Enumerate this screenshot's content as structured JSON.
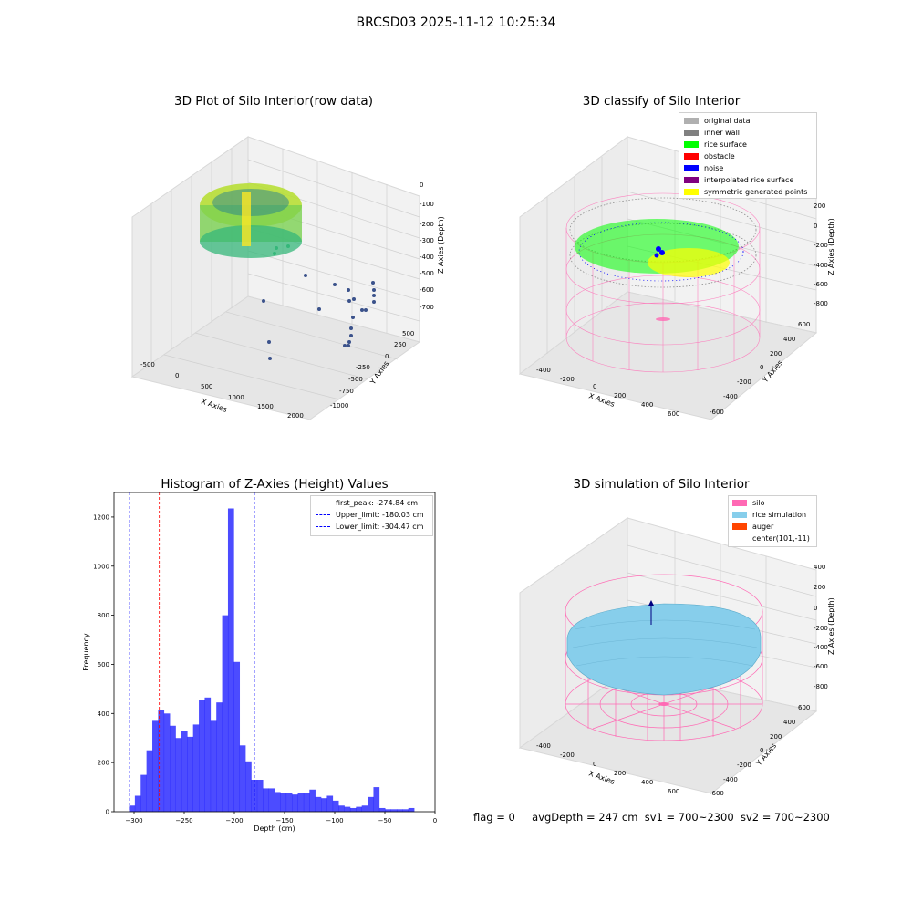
{
  "suptitle": "BRCSD03 2025-11-12 10:25:34",
  "panels": {
    "raw": {
      "title": "3D Plot of Silo Interior(row data)",
      "xlabel": "X Axies",
      "ylabel": "Y Axies",
      "zlabel": "Z Axies (Depth)",
      "xticks": [
        "-500",
        "0",
        "500",
        "1000",
        "1500",
        "2000"
      ],
      "yticks": [
        "500",
        "250",
        "0",
        "-250",
        "-500",
        "-750",
        "-1000"
      ],
      "zticks": [
        "0",
        "-100",
        "-200",
        "-300",
        "-400",
        "-500",
        "-600",
        "-700"
      ]
    },
    "classify": {
      "title": "3D classify of Silo Interior",
      "xlabel": "X Axies",
      "ylabel": "Y Axies",
      "zlabel": "Z Axies (Depth)",
      "xticks": [
        "-400",
        "-200",
        "0",
        "200",
        "400",
        "600"
      ],
      "yticks": [
        "600",
        "400",
        "200",
        "0",
        "-200",
        "-400",
        "-600"
      ],
      "zticks": [
        "200",
        "0",
        "-200",
        "-400",
        "-600",
        "-800"
      ],
      "legend": [
        {
          "label": "original data",
          "color": "#b0b0b0"
        },
        {
          "label": "inner wall",
          "color": "#808080"
        },
        {
          "label": "rice surface",
          "color": "#00ff00"
        },
        {
          "label": "obstacle",
          "color": "#ff0000"
        },
        {
          "label": "noise",
          "color": "#0000ff"
        },
        {
          "label": "interpolated rice surface",
          "color": "#800080"
        },
        {
          "label": "symmetric generated points",
          "color": "#ffff00"
        }
      ]
    },
    "simulation": {
      "title": "3D simulation of Silo Interior",
      "xlabel": "X Axies",
      "ylabel": "Y Axies",
      "zlabel": "Z Axies (Depth)",
      "xticks": [
        "-400",
        "-200",
        "0",
        "200",
        "400",
        "600"
      ],
      "yticks": [
        "600",
        "400",
        "200",
        "0",
        "-200",
        "-400",
        "-600"
      ],
      "zticks": [
        "400",
        "200",
        "0",
        "-200",
        "-400",
        "-600",
        "-800"
      ],
      "legend": [
        {
          "label": "silo",
          "color": "#ff69b4"
        },
        {
          "label": "rice simulation",
          "color": "#87ceeb"
        },
        {
          "label": "auger",
          "color": "#ff4500"
        },
        {
          "label": "center(101,-11)",
          "color": ""
        }
      ]
    }
  },
  "footer": {
    "flag": "flag = 0",
    "avgDepth": "avgDepth = 247 cm",
    "sv1": "sv1 = 700~2300",
    "sv2": "sv2 = 700~2300"
  },
  "chart_data": {
    "type": "bar",
    "title": "Histogram of Z-Axies (Height) Values",
    "xlabel": "Depth (cm)",
    "ylabel": "Frequency",
    "xlim": [
      -320,
      0
    ],
    "ylim": [
      0,
      1300
    ],
    "xticks": [
      -300,
      -250,
      -200,
      -150,
      -100,
      -50,
      0
    ],
    "yticks": [
      0,
      200,
      400,
      600,
      800,
      1000,
      1200
    ],
    "bin_start": -305,
    "bin_width": 5.8,
    "values": [
      25,
      65,
      150,
      250,
      370,
      415,
      400,
      350,
      300,
      330,
      305,
      355,
      455,
      465,
      370,
      445,
      800,
      1235,
      610,
      270,
      205,
      130,
      130,
      95,
      95,
      80,
      75,
      75,
      70,
      75,
      75,
      90,
      60,
      55,
      65,
      45,
      25,
      20,
      15,
      20,
      25,
      60,
      100,
      15,
      10,
      10,
      10,
      10,
      15
    ],
    "color": "#0000ff",
    "vlines": [
      {
        "label": "first_peak: -274.84 cm",
        "x": -274.84,
        "color": "#ff0000"
      },
      {
        "label": "Upper_limit: -180.03 cm",
        "x": -180.03,
        "color": "#0000ff"
      },
      {
        "label": "Lower_limit: -304.47 cm",
        "x": -304.47,
        "color": "#0000ff"
      }
    ]
  }
}
